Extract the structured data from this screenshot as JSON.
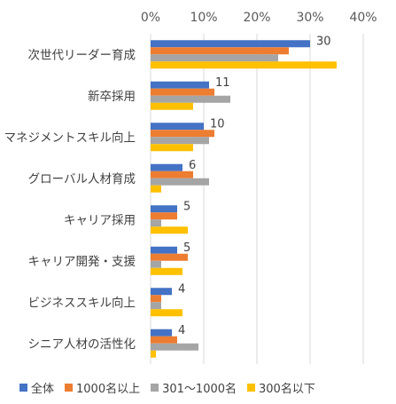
{
  "chart_data": {
    "type": "bar",
    "orientation": "horizontal",
    "title": "",
    "xlabel": "",
    "ylabel": "",
    "xlim": [
      0,
      40
    ],
    "x_ticks": [
      "0%",
      "10%",
      "20%",
      "30%",
      "40%"
    ],
    "x_axis_position": "top",
    "grid": true,
    "legend_position": "bottom",
    "categories": [
      "次世代リーダー育成",
      "新卒採用",
      "マネジメントスキル向上",
      "グローバル人材育成",
      "キャリア採用",
      "キャリア開発・支援",
      "ビジネススキル向上",
      "シニア人材の活性化"
    ],
    "series": [
      {
        "name": "全体",
        "color": "#4472C4",
        "values": [
          30,
          11,
          10,
          6,
          5,
          5,
          4,
          4
        ]
      },
      {
        "name": "1000名以上",
        "color": "#ED7D31",
        "values": [
          26,
          12,
          12,
          8,
          5,
          7,
          2,
          5
        ]
      },
      {
        "name": "301～1000名",
        "color": "#A5A5A5",
        "values": [
          24,
          15,
          11,
          11,
          2,
          2,
          2,
          9
        ]
      },
      {
        "name": "300名以下",
        "color": "#FFC000",
        "values": [
          35,
          8,
          8,
          2,
          7,
          6,
          6,
          1
        ]
      }
    ],
    "data_labels": [
      "30",
      "11",
      "10",
      "6",
      "5",
      "5",
      "4",
      "4"
    ]
  }
}
